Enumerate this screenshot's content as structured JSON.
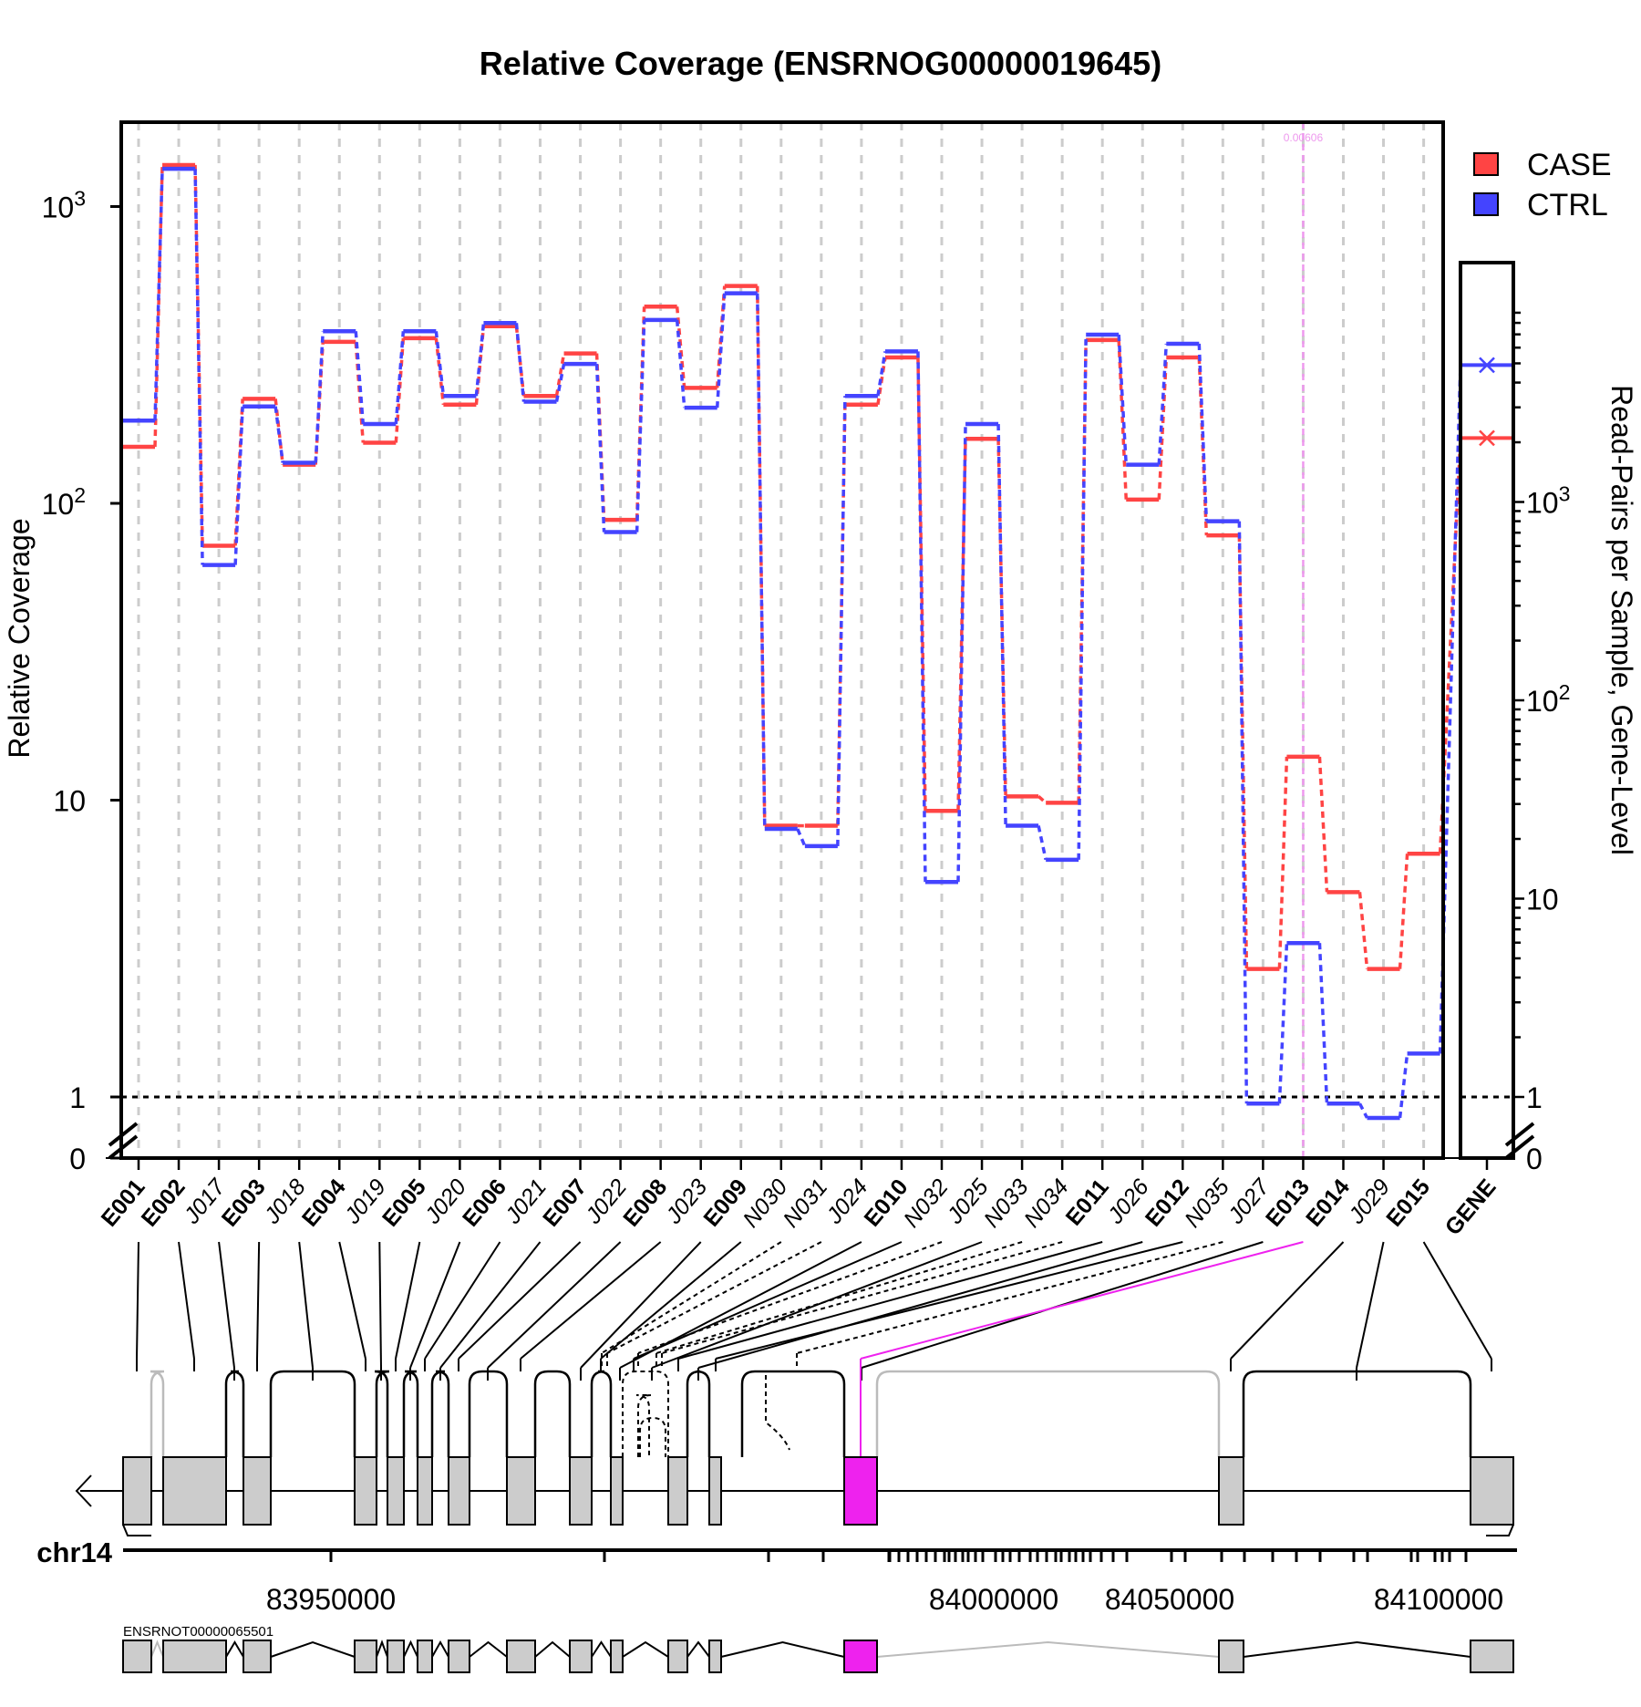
{
  "title": "Relative Coverage (ENSRNOG00000019645)",
  "colors": {
    "case": "#ff4444",
    "ctrl": "#4444ff",
    "highlight": "#ee22ee",
    "highlight_label": "#ee99ee",
    "grey_box": "#cccccc",
    "grid": "#cccccc",
    "faint_junction": "#bbbbbb"
  },
  "chart_data": {
    "type": "line",
    "title": "Relative Coverage (ENSRNOG00000019645)",
    "ylabel": "Relative Coverage",
    "right_ylabel": "Read-Pairs per Sample, Gene-Level",
    "y_scale": "log",
    "y_ticks": [
      "10^3",
      "10^2",
      "10",
      "1",
      "0"
    ],
    "right_y_ticks": [
      "10^3",
      "10^2",
      "10",
      "1",
      "0"
    ],
    "categories": [
      "E001",
      "E002",
      "J017",
      "E003",
      "J018",
      "E004",
      "J019",
      "E005",
      "J020",
      "E006",
      "J021",
      "E007",
      "J022",
      "E008",
      "J023",
      "E009",
      "N030",
      "N031",
      "J024",
      "E010",
      "N032",
      "J025",
      "N033",
      "N034",
      "E011",
      "J026",
      "E012",
      "N035",
      "J027",
      "E013",
      "E014",
      "J029",
      "E015"
    ],
    "exon_categories": [
      "E001",
      "E002",
      "E003",
      "E004",
      "E005",
      "E006",
      "E007",
      "E008",
      "E009",
      "E010",
      "E011",
      "E012",
      "E013",
      "E014",
      "E015"
    ],
    "series": [
      {
        "name": "CASE",
        "values": [
          155,
          1380,
          72,
          225,
          135,
          350,
          160,
          360,
          215,
          395,
          230,
          320,
          88,
          460,
          245,
          540,
          8.2,
          8.2,
          215,
          310,
          9.2,
          165,
          10.3,
          9.8,
          355,
          103,
          310,
          78,
          2.7,
          14,
          4.9,
          2.7,
          6.6
        ]
      },
      {
        "name": "CTRL",
        "values": [
          190,
          1340,
          62,
          212,
          137,
          380,
          185,
          380,
          230,
          405,
          220,
          295,
          80,
          415,
          210,
          510,
          8.0,
          7.0,
          230,
          325,
          5.3,
          185,
          8.2,
          6.3,
          370,
          135,
          345,
          87,
          0.95,
          3.3,
          0.95,
          0.85,
          1.4
        ]
      }
    ],
    "reference_line": 1,
    "highlight": {
      "category": "E013",
      "label": "0.00606"
    },
    "gene_panel": {
      "categories": [
        "GENE"
      ],
      "CASE": 2100,
      "CTRL": 4900
    },
    "legend": {
      "position": "top-right",
      "entries": [
        "CASE",
        "CTRL"
      ]
    },
    "grid": true
  },
  "gene_model": {
    "chromosome": "chr14",
    "axis_ticks": [
      "83950000",
      "84000000",
      "84050000",
      "84100000"
    ],
    "transcript": "ENSRNOT00000065501"
  }
}
